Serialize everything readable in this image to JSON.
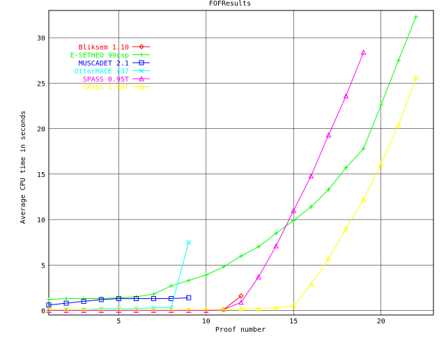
{
  "chart_data": {
    "type": "line",
    "title": "FOFResults",
    "xlabel": "Proof number",
    "ylabel": "Average CPU time in seconds",
    "xlim": [
      1,
      23
    ],
    "ylim": [
      -0.5,
      33
    ],
    "xticks": [
      5,
      10,
      15,
      20
    ],
    "yticks": [
      0,
      5,
      10,
      15,
      20,
      25,
      30
    ],
    "grid": true,
    "legend_position": "top-left",
    "series": [
      {
        "name": "Bliksem 1.10",
        "color": "#ff0000",
        "marker": "diamond",
        "x": [
          1,
          2,
          3,
          4,
          5,
          6,
          7,
          8,
          9,
          10,
          11,
          12
        ],
        "y": [
          0.0,
          0.0,
          0.0,
          0.0,
          0.0,
          0.0,
          0.0,
          0.0,
          0.0,
          0.0,
          0.1,
          1.6
        ]
      },
      {
        "name": "E-SETHEO 99csp",
        "color": "#00ff00",
        "marker": "plus",
        "x": [
          1,
          2,
          3,
          4,
          5,
          6,
          7,
          8,
          9,
          10,
          11,
          12,
          13,
          14,
          15,
          16,
          17,
          18,
          19,
          20,
          21,
          22
        ],
        "y": [
          1.2,
          1.3,
          1.3,
          1.3,
          1.4,
          1.5,
          1.8,
          2.7,
          3.3,
          3.9,
          4.8,
          6.0,
          7.0,
          8.5,
          9.9,
          11.4,
          13.3,
          15.7,
          17.8,
          22.6,
          27.5,
          32.3
        ]
      },
      {
        "name": "MUSCADET 2.1",
        "color": "#0000ff",
        "marker": "square",
        "x": [
          1,
          2,
          3,
          4,
          5,
          6,
          7,
          8,
          9
        ],
        "y": [
          0.6,
          0.8,
          1.0,
          1.2,
          1.3,
          1.3,
          1.3,
          1.3,
          1.4
        ]
      },
      {
        "name": "OtterMACE 437",
        "color": "#00ffff",
        "marker": "cross",
        "x": [
          1,
          2,
          3,
          4,
          5,
          6,
          7,
          8,
          9
        ],
        "y": [
          0.1,
          0.1,
          0.1,
          0.2,
          0.2,
          0.2,
          0.3,
          0.3,
          7.5
        ]
      },
      {
        "name": "SPASS 0.95T",
        "color": "#ff00ff",
        "marker": "triangle",
        "x": [
          1,
          2,
          3,
          4,
          5,
          6,
          7,
          8,
          9,
          10,
          11,
          12,
          13,
          14,
          15,
          16,
          17,
          18,
          19
        ],
        "y": [
          0.0,
          0.0,
          0.0,
          0.0,
          0.0,
          0.0,
          0.0,
          0.0,
          0.0,
          0.0,
          0.1,
          0.9,
          3.7,
          7.1,
          11.0,
          14.8,
          19.3,
          23.6,
          28.4
        ]
      },
      {
        "name": "SPASS 1.00T",
        "color": "#ffff00",
        "marker": "triangle",
        "x": [
          1,
          2,
          3,
          4,
          5,
          6,
          7,
          8,
          9,
          10,
          11,
          12,
          13,
          14,
          15,
          16,
          17,
          18,
          19,
          20,
          21,
          22
        ],
        "y": [
          0.1,
          0.1,
          0.1,
          0.1,
          0.1,
          0.1,
          0.1,
          0.1,
          0.1,
          0.1,
          0.1,
          0.2,
          0.2,
          0.3,
          0.5,
          2.9,
          5.7,
          9.0,
          12.2,
          16.1,
          20.4,
          25.6
        ]
      }
    ]
  }
}
